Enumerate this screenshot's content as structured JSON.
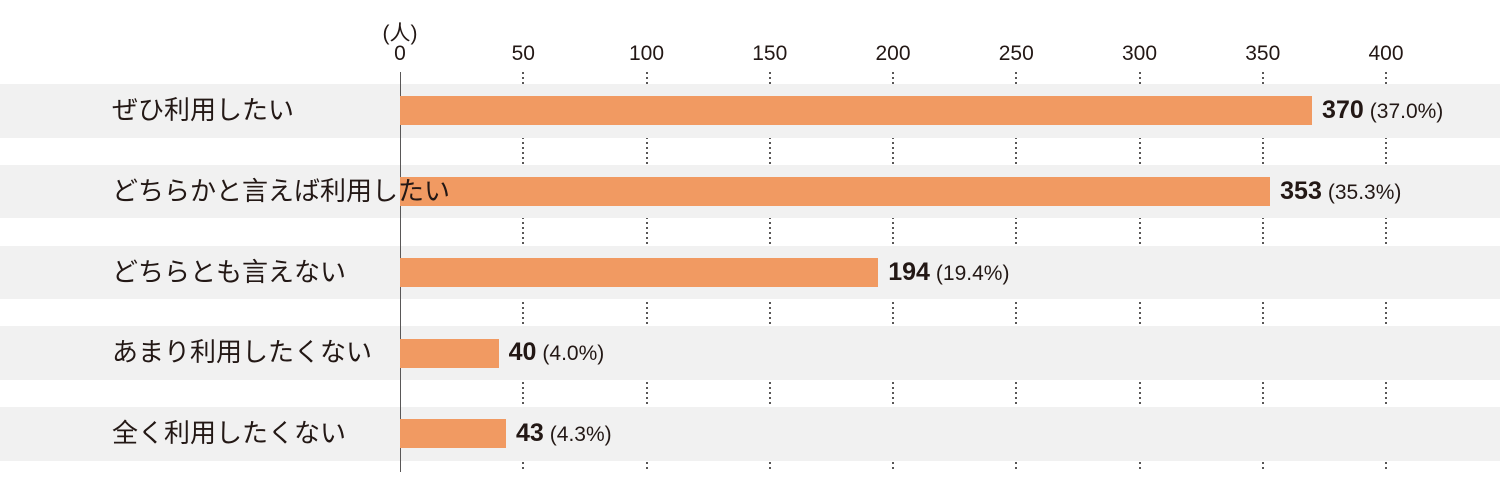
{
  "chart_data": {
    "type": "bar",
    "orientation": "horizontal",
    "title": "",
    "unit_label": "(人)",
    "categories": [
      "ぜひ利用したい",
      "どちらかと言えば利用したい",
      "どちらとも言えない",
      "あまり利用したくない",
      "全く利用したくない"
    ],
    "values": [
      370,
      353,
      194,
      40,
      43
    ],
    "value_labels": [
      "370",
      "353",
      "194",
      "40",
      "43"
    ],
    "percent_labels": [
      "(37.0%)",
      "(35.3%)",
      "(19.4%)",
      "(4.0%)",
      "(4.3%)"
    ],
    "x_ticks": [
      0,
      50,
      100,
      150,
      200,
      250,
      300,
      350,
      400
    ],
    "xlim": [
      0,
      446
    ],
    "grid": "dotted-vertical-in-row-gaps",
    "legend": "none",
    "colors": {
      "bar": "#F19A62",
      "row_band": "#F1F1F1",
      "axis_line": "#595757",
      "gridline": "#595757",
      "text": "#231815"
    }
  }
}
